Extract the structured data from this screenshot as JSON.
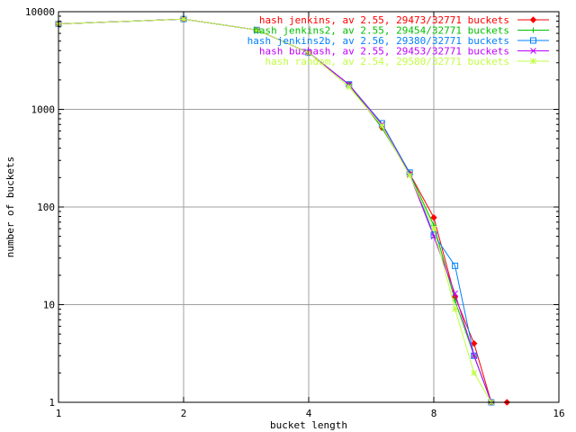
{
  "chart_data": {
    "type": "line",
    "title": "",
    "xlabel": "bucket length",
    "ylabel": "number of buckets",
    "xscale": "log2",
    "yscale": "log10",
    "xlim": [
      1,
      16
    ],
    "ylim": [
      1,
      10000
    ],
    "xticks": [
      1,
      2,
      4,
      8,
      16
    ],
    "yticks": [
      1,
      10,
      100,
      1000,
      10000
    ],
    "grid": true,
    "legend_position": "top-right",
    "series": [
      {
        "name": "hash jenkins, av 2.55, 29473/32771 buckets",
        "color": "#ff0000",
        "marker": "diamond",
        "x": [
          1,
          2,
          3,
          4,
          5,
          6,
          7,
          8,
          9,
          10,
          11,
          12
        ],
        "y": [
          7500,
          8400,
          6500,
          3800,
          1800,
          650,
          220,
          78,
          12,
          4,
          1,
          1
        ]
      },
      {
        "name": "hash jenkins2, av 2.55, 29454/32771 buckets",
        "color": "#00c000",
        "marker": "plus",
        "x": [
          1,
          2,
          3,
          4,
          5,
          6,
          7,
          8,
          9,
          10,
          11
        ],
        "y": [
          7500,
          8400,
          6500,
          3800,
          1800,
          650,
          220,
          65,
          11,
          3,
          1
        ]
      },
      {
        "name": "hash jenkins2b, av 2.56, 29380/32771 buckets",
        "color": "#0080ff",
        "marker": "square",
        "x": [
          1,
          2,
          3,
          4,
          5,
          6,
          7,
          8,
          9,
          10,
          11
        ],
        "y": [
          7500,
          8400,
          6500,
          3800,
          1800,
          720,
          225,
          52,
          25,
          3,
          1
        ]
      },
      {
        "name": "hash buzhash, av 2.55, 29453/32771 buckets",
        "color": "#c000ff",
        "marker": "cross",
        "x": [
          1,
          2,
          3,
          4,
          5,
          6,
          7,
          8,
          9,
          10,
          11
        ],
        "y": [
          7500,
          8400,
          6500,
          3800,
          1800,
          700,
          215,
          50,
          13,
          3,
          1
        ]
      },
      {
        "name": "hash random, av 2.54, 29580/32771 buckets",
        "color": "#c0ff40",
        "marker": "star",
        "x": [
          1,
          2,
          3,
          4,
          5,
          6,
          7,
          8,
          9,
          10,
          11
        ],
        "y": [
          7500,
          8400,
          6500,
          3800,
          1700,
          680,
          210,
          60,
          9,
          2,
          1
        ]
      }
    ]
  }
}
